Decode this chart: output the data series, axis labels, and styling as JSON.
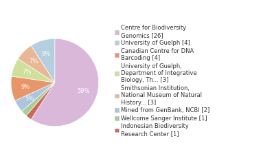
{
  "labels": [
    "Centre for Biodiversity\nGenomics [26]",
    "University of Guelph [4]",
    "Canadian Centre for DNA\nBarcoding [4]",
    "University of Guelph,\nDepartment of Integrative\nBiology, Th... [3]",
    "Smithsonian Institution,\nNational Museum of Natural\nHistory... [3]",
    "Mined from GenBank, NCBI [2]",
    "Wellcome Sanger Institute [1]",
    "Indonesian Biodiversity\nResearch Center [1]"
  ],
  "values": [
    26,
    4,
    4,
    3,
    3,
    2,
    1,
    1
  ],
  "colors": [
    "#d9b8d9",
    "#b5cfe0",
    "#e8956a",
    "#cfe09a",
    "#e8b896",
    "#adc5dc",
    "#a8cc9a",
    "#cc6a5a"
  ],
  "startangle": 90,
  "text_color": "#ffffff",
  "fontsize_pct": 6,
  "fontsize_legend": 6
}
